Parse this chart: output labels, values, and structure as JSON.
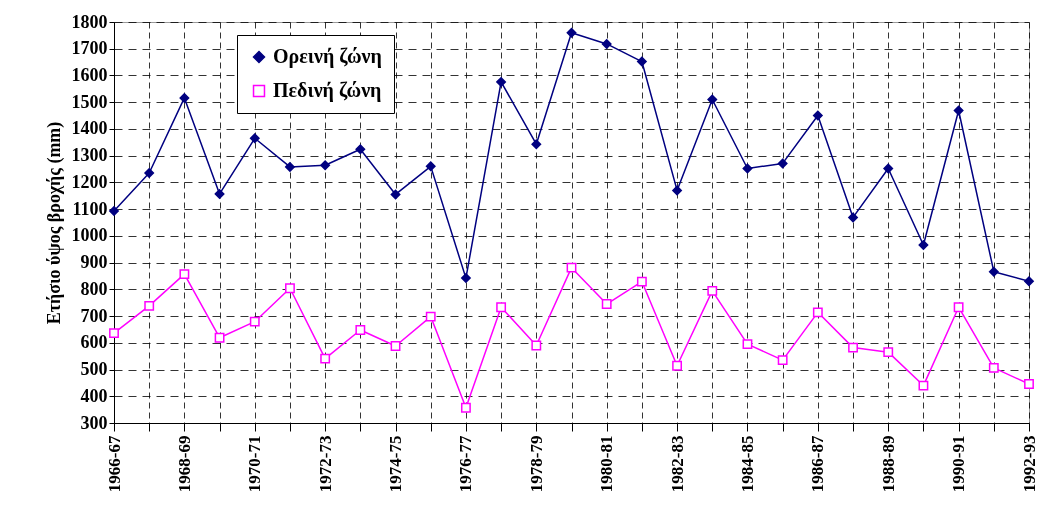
{
  "chart_data": {
    "type": "line",
    "ylabel": "Ετήσιο ύψος βροχής (mm)",
    "categories": [
      "1966-67",
      null,
      "1968-69",
      null,
      "1970-71",
      null,
      "1972-73",
      null,
      "1974-75",
      null,
      "1976-77",
      null,
      "1978-79",
      null,
      "1980-81",
      null,
      "1982-83",
      null,
      "1984-85",
      null,
      "1986-87",
      null,
      "1988-89",
      null,
      "1990-91",
      null,
      "1992-93"
    ],
    "series": [
      {
        "name": "Ορεινή ζώνη",
        "color": "#000080",
        "marker": "diamond",
        "values": [
          1093,
          1235,
          1516,
          1157,
          1365,
          1258,
          1264,
          1324,
          1155,
          1260,
          842,
          1576,
          1343,
          1760,
          1718,
          1652,
          1170,
          1510,
          1252,
          1271,
          1450,
          1069,
          1252,
          966,
          1469,
          866,
          830
        ]
      },
      {
        "name": "Πεδινή ζώνη",
        "color": "#ff00ff",
        "marker": "square",
        "values": [
          636,
          738,
          857,
          619,
          679,
          804,
          541,
          648,
          588,
          698,
          357,
          733,
          590,
          881,
          745,
          829,
          514,
          794,
          595,
          535,
          714,
          582,
          565,
          440,
          733,
          506,
          446
        ]
      }
    ],
    "ylim": [
      300,
      1800
    ],
    "yticks": [
      300,
      400,
      500,
      600,
      700,
      800,
      900,
      1000,
      1100,
      1200,
      1300,
      1400,
      1500,
      1600,
      1700,
      1800
    ],
    "grid": true,
    "legend": "top left",
    "line_style": "solid"
  }
}
